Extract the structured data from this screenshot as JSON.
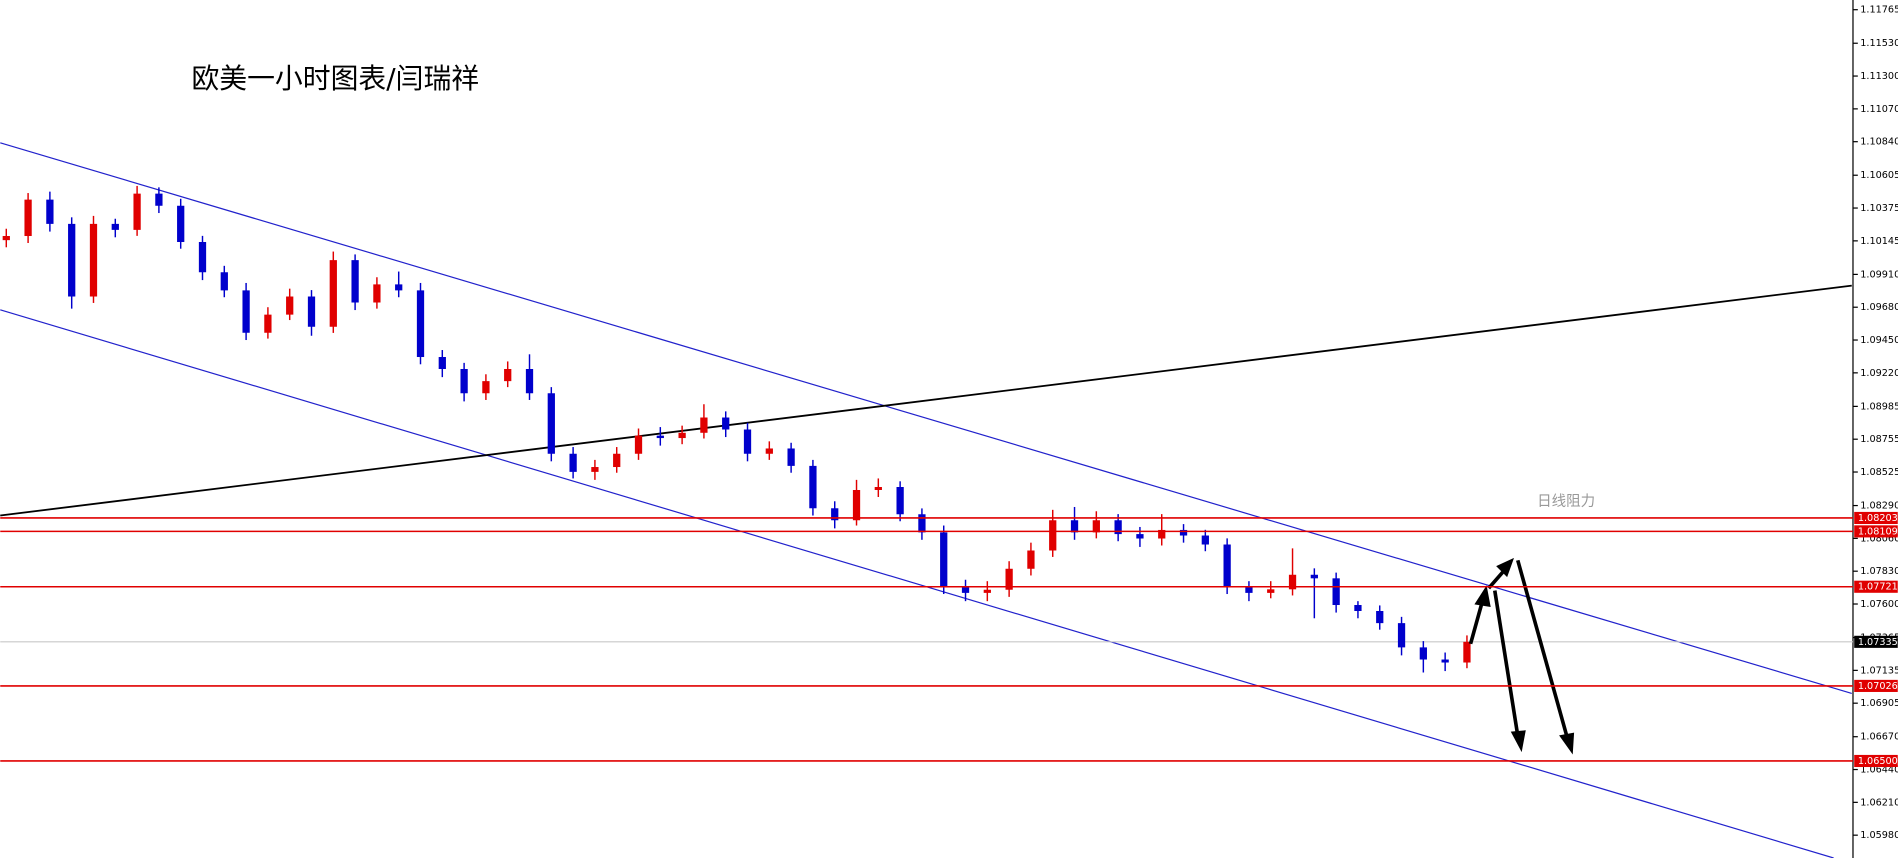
{
  "chart_data": {
    "type": "candlestick",
    "title": "欧美一小时图表/闫瑞祥",
    "annotation": "日线阻力",
    "ylim": [
      1.0582,
      1.11833
    ],
    "yticks": [
      1.11765,
      {
        "value": 1.1153,
        "label": "1.11530"
      },
      {
        "value": 1.113,
        "label": "1.11300"
      },
      {
        "value": 1.1107,
        "label": "1.11070"
      },
      {
        "value": 1.1084,
        "label": "1.10840"
      },
      1.10605,
      1.10375,
      1.10145,
      {
        "value": 1.0991,
        "label": "1.09910"
      },
      {
        "value": 1.0968,
        "label": "1.09680"
      },
      {
        "value": 1.0945,
        "label": "1.09450"
      },
      {
        "value": 1.0922,
        "label": "1.09220"
      },
      1.08985,
      1.08755,
      1.08525,
      {
        "value": 1.0829,
        "label": "1.08290"
      },
      {
        "value": 1.0806,
        "label": "1.08060"
      },
      {
        "value": 1.0783,
        "label": "1.07830"
      },
      {
        "value": 1.076,
        "label": "1.07600"
      },
      1.07365,
      1.07135,
      1.06905,
      {
        "value": 1.0667,
        "label": "1.06670"
      },
      {
        "value": 1.0644,
        "label": "1.06440"
      },
      {
        "value": 1.0621,
        "label": "1.06210"
      },
      {
        "value": 1.0598,
        "label": "1.05980"
      }
    ],
    "up_color": "#e00000",
    "down_color": "#0000cc",
    "open": [
      1.1015,
      1.10179,
      1.10434,
      1.10264,
      1.09755,
      1.10264,
      1.10222,
      1.10476,
      1.10391,
      1.10137,
      1.09925,
      1.09798,
      1.09501,
      1.09628,
      1.09755,
      1.09543,
      1.1001,
      1.09713,
      1.0984,
      1.09798,
      1.09331,
      1.09247,
      1.09077,
      1.09162,
      1.09247,
      1.09077,
      1.08653,
      1.08526,
      1.0856,
      1.08653,
      1.0878,
      1.08763,
      1.088,
      1.08907,
      1.08823,
      1.08653,
      1.0869,
      1.08568,
      1.08271,
      1.08187,
      1.08399,
      1.0842,
      1.08229,
      1.08102,
      1.0772,
      1.07678,
      1.077,
      1.07847,
      1.07975,
      1.08187,
      1.08102,
      1.08187,
      1.0809,
      1.08059,
      1.08119,
      1.0808,
      1.08017,
      1.0772,
      1.07678,
      1.07703,
      1.07805,
      1.0778,
      1.07593,
      1.07551,
      1.07466,
      1.07296,
      1.07211,
      1.0719
    ],
    "high": [
      1.1023,
      1.1048,
      1.1049,
      1.1031,
      1.1032,
      1.103,
      1.1053,
      1.1052,
      1.1044,
      1.1018,
      1.0997,
      1.0985,
      1.0968,
      1.0981,
      1.098,
      1.1007,
      1.1005,
      1.0989,
      1.0993,
      1.0985,
      1.0938,
      1.0929,
      1.0921,
      1.093,
      1.0935,
      1.0912,
      1.087,
      1.0861,
      1.087,
      1.0883,
      1.0884,
      1.0885,
      1.09,
      1.0895,
      1.0887,
      1.0874,
      1.0873,
      1.0861,
      1.0832,
      1.0847,
      1.0848,
      1.0846,
      1.0827,
      1.0815,
      1.0777,
      1.0776,
      1.079,
      1.0803,
      1.0826,
      1.0828,
      1.0825,
      1.0823,
      1.0814,
      1.0823,
      1.0816,
      1.0812,
      1.0806,
      1.0776,
      1.0776,
      1.0799,
      1.0785,
      1.0782,
      1.0762,
      1.0759,
      1.0751,
      1.0734,
      1.0726,
      1.0738
    ],
    "low": [
      1.101,
      1.1013,
      1.1021,
      1.0967,
      1.0971,
      1.1017,
      1.1018,
      1.1034,
      1.1009,
      1.0987,
      1.0975,
      1.0945,
      1.0946,
      1.0959,
      1.0948,
      1.095,
      1.0966,
      1.0967,
      1.0975,
      1.0928,
      1.0919,
      1.0902,
      1.0903,
      1.0912,
      1.0903,
      1.086,
      1.0848,
      1.0847,
      1.0852,
      1.0861,
      1.0871,
      1.0872,
      1.0876,
      1.0877,
      1.086,
      1.0861,
      1.0852,
      1.0822,
      1.0813,
      1.0815,
      1.0835,
      1.0818,
      1.0805,
      1.0767,
      1.0762,
      1.0762,
      1.0765,
      1.078,
      1.0793,
      1.0805,
      1.0806,
      1.0804,
      1.08,
      1.0801,
      1.0803,
      1.0797,
      1.0767,
      1.0762,
      1.0764,
      1.0766,
      1.075,
      1.0754,
      1.075,
      1.0742,
      1.0724,
      1.0712,
      1.0713,
      1.0715
    ],
    "close": [
      1.10179,
      1.10434,
      1.10264,
      1.09755,
      1.10264,
      1.10222,
      1.10476,
      1.10391,
      1.10137,
      1.09925,
      1.09798,
      1.09501,
      1.09628,
      1.09755,
      1.09543,
      1.1001,
      1.09713,
      1.0984,
      1.09798,
      1.09331,
      1.09247,
      1.09077,
      1.09162,
      1.09247,
      1.09077,
      1.08653,
      1.08526,
      1.0856,
      1.08653,
      1.0878,
      1.08763,
      1.088,
      1.08907,
      1.08823,
      1.08653,
      1.0869,
      1.08568,
      1.08271,
      1.08187,
      1.08399,
      1.0842,
      1.08229,
      1.08102,
      1.0772,
      1.07678,
      1.077,
      1.07847,
      1.07975,
      1.08187,
      1.08102,
      1.08187,
      1.0809,
      1.08059,
      1.08119,
      1.0808,
      1.08017,
      1.0772,
      1.07678,
      1.07703,
      1.07805,
      1.0778,
      1.07593,
      1.07551,
      1.07466,
      1.07296,
      1.07211,
      1.0719,
      1.07335
    ],
    "levels": {
      "values": [
        1.08203,
        1.08109,
        1.07721,
        1.07026,
        1.065
      ],
      "value_labels": [
        "1.08203",
        "1.08109",
        "1.07721",
        "1.07026",
        "1.06500"
      ],
      "color": "#e00000"
    },
    "last_price": 1.07335
  }
}
